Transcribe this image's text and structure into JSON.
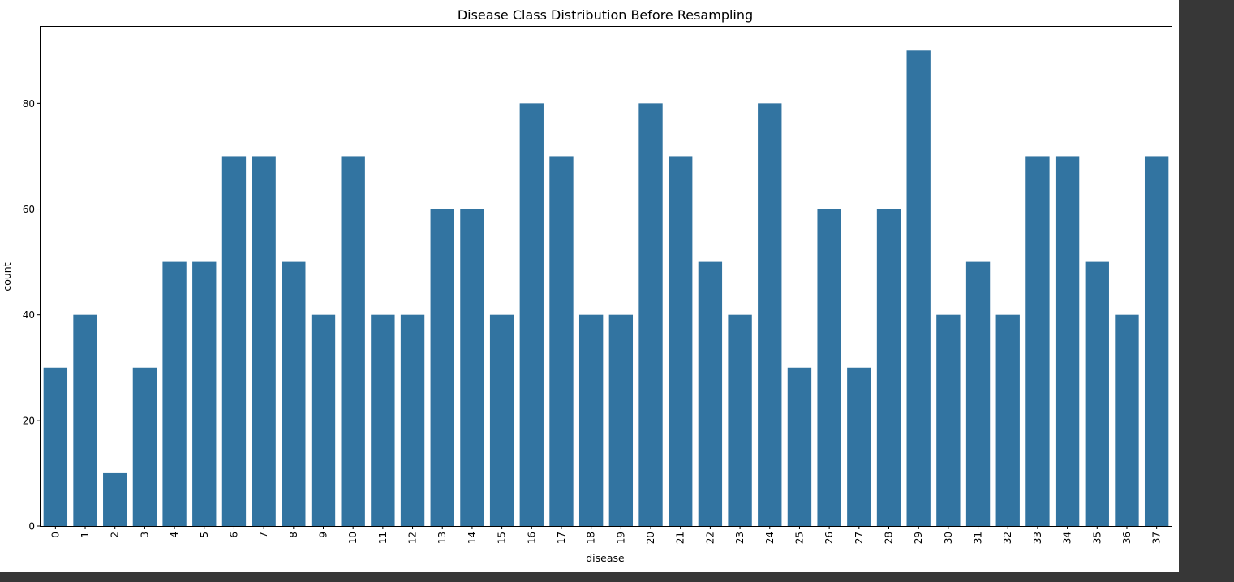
{
  "chart_data": {
    "type": "bar",
    "title": "Disease Class Distribution Before Resampling",
    "xlabel": "disease",
    "ylabel": "count",
    "categories": [
      "0",
      "1",
      "2",
      "3",
      "4",
      "5",
      "6",
      "7",
      "8",
      "9",
      "10",
      "11",
      "12",
      "13",
      "14",
      "15",
      "16",
      "17",
      "18",
      "19",
      "20",
      "21",
      "22",
      "23",
      "24",
      "25",
      "26",
      "27",
      "28",
      "29",
      "30",
      "31",
      "32",
      "33",
      "34",
      "35",
      "36",
      "37"
    ],
    "values": [
      30,
      40,
      10,
      30,
      50,
      50,
      70,
      70,
      50,
      40,
      70,
      40,
      40,
      60,
      60,
      40,
      80,
      70,
      40,
      40,
      80,
      70,
      50,
      40,
      80,
      30,
      60,
      30,
      60,
      90,
      40,
      50,
      40,
      70,
      70,
      50,
      40,
      70
    ],
    "ylim": [
      0,
      94.5
    ],
    "yticks": [
      0,
      20,
      40,
      60,
      80
    ],
    "bar_color": "#3274a1",
    "grid": false,
    "legend": "none"
  }
}
